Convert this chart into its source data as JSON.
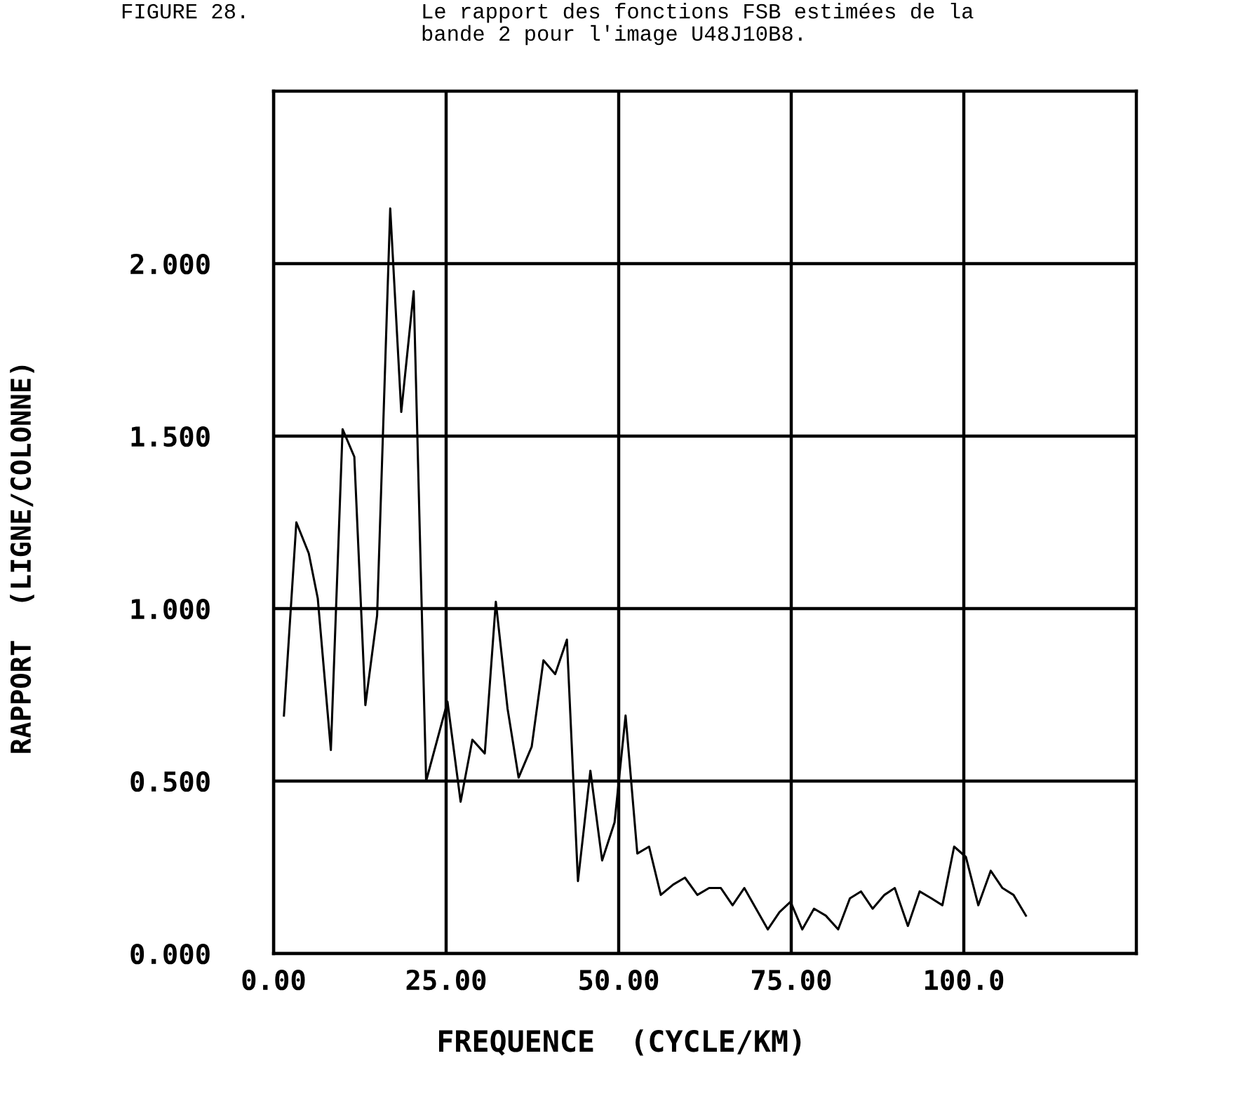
{
  "chart_data": {
    "type": "line",
    "title": "Le rapport des fonctions FSB estimées de la\nbande 2 pour l'image U48J10B8.",
    "annotations": [
      "FIGURE 28."
    ],
    "xlabel": "FREQUENCE  (CYCLE/KM)",
    "ylabel": "RAPPORT  (LIGNE/COLONNE)",
    "x": [
      1.5,
      3.3,
      5.1,
      6.4,
      8.3,
      10.0,
      11.7,
      13.3,
      15.0,
      16.9,
      18.5,
      20.3,
      22.1,
      25.2,
      27.1,
      28.8,
      30.6,
      32.2,
      33.9,
      35.5,
      37.4,
      39.1,
      40.8,
      42.5,
      44.1,
      45.9,
      47.6,
      49.4,
      51.0,
      52.7,
      54.4,
      56.1,
      57.9,
      59.6,
      61.4,
      63.1,
      64.8,
      66.5,
      68.2,
      69.9,
      71.6,
      73.3,
      74.9,
      76.6,
      78.3,
      80.0,
      81.8,
      83.5,
      85.1,
      86.8,
      88.5,
      90.0,
      91.9,
      93.6,
      95.3,
      96.9,
      98.6,
      100.3,
      102.1,
      103.9,
      105.6,
      107.2,
      109.0
    ],
    "series": [
      {
        "color": "#000000",
        "values": [
          0.69,
          1.25,
          1.16,
          1.03,
          0.59,
          1.52,
          1.44,
          0.72,
          0.98,
          2.16,
          1.57,
          1.92,
          0.5,
          0.73,
          0.44,
          0.62,
          0.58,
          1.02,
          0.71,
          0.51,
          0.6,
          0.85,
          0.81,
          0.91,
          0.21,
          0.53,
          0.27,
          0.38,
          0.69,
          0.29,
          0.31,
          0.17,
          0.2,
          0.22,
          0.17,
          0.19,
          0.19,
          0.14,
          0.19,
          0.13,
          0.07,
          0.12,
          0.15,
          0.07,
          0.13,
          0.11,
          0.07,
          0.16,
          0.18,
          0.13,
          0.17,
          0.19,
          0.08,
          0.18,
          0.16,
          0.14,
          0.31,
          0.28,
          0.14,
          0.24,
          0.19,
          0.17,
          0.11
        ]
      }
    ],
    "xlim": [
      0,
      125
    ],
    "ylim": [
      0,
      2.5
    ],
    "xticks": [
      {
        "value": 0,
        "label": "0.00"
      },
      {
        "value": 25,
        "label": "25.00"
      },
      {
        "value": 50,
        "label": "50.00"
      },
      {
        "value": 75,
        "label": "75.00"
      },
      {
        "value": 100,
        "label": "100.0"
      }
    ],
    "yticks": [
      {
        "value": 0,
        "label": "0.000"
      },
      {
        "value": 0.5,
        "label": "0.500"
      },
      {
        "value": 1,
        "label": "1.000"
      },
      {
        "value": 1.5,
        "label": "1.500"
      },
      {
        "value": 2,
        "label": "2.000"
      }
    ],
    "grid": true
  }
}
